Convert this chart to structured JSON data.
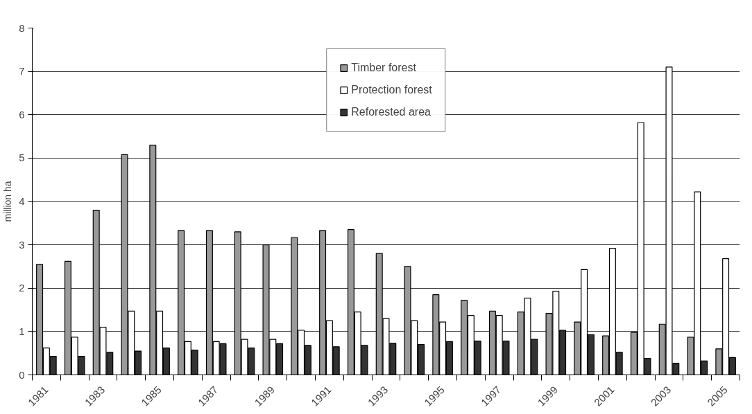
{
  "chart_data": {
    "type": "bar",
    "ylabel": "million ha",
    "categories": [
      "1981",
      null,
      "1983",
      null,
      "1985",
      null,
      "1987",
      null,
      "1989",
      null,
      "1991",
      null,
      "1993",
      null,
      "1995",
      null,
      "1997",
      null,
      "1999",
      null,
      "2001",
      null,
      "2003",
      null,
      "2005"
    ],
    "series": [
      {
        "name": "Timber forest",
        "color": "#999999",
        "values": [
          2.55,
          2.62,
          3.8,
          5.08,
          5.3,
          3.33,
          3.33,
          3.3,
          3.0,
          3.17,
          3.33,
          3.35,
          2.8,
          2.5,
          1.85,
          1.72,
          1.47,
          1.45,
          1.42,
          1.22,
          0.9,
          0.98,
          1.17,
          0.87,
          0.6
        ]
      },
      {
        "name": "Protection forest",
        "color": "#ffffff",
        "values": [
          0.62,
          0.87,
          1.1,
          1.47,
          1.47,
          0.77,
          0.77,
          0.82,
          0.82,
          1.03,
          1.25,
          1.45,
          1.3,
          1.25,
          1.22,
          1.37,
          1.37,
          1.77,
          1.93,
          2.43,
          2.92,
          5.82,
          7.1,
          4.22,
          2.68
        ]
      },
      {
        "name": "Reforested area",
        "color": "#333333",
        "values": [
          0.43,
          0.43,
          0.52,
          0.55,
          0.62,
          0.57,
          0.72,
          0.62,
          0.72,
          0.68,
          0.65,
          0.68,
          0.73,
          0.7,
          0.77,
          0.78,
          0.78,
          0.82,
          1.03,
          0.93,
          0.52,
          0.38,
          0.27,
          0.32,
          0.4
        ]
      }
    ],
    "ylim": [
      0,
      8
    ],
    "yticks": [
      0,
      1,
      2,
      3,
      4,
      5,
      6,
      7,
      8
    ],
    "grid": "y",
    "legend": "top"
  }
}
